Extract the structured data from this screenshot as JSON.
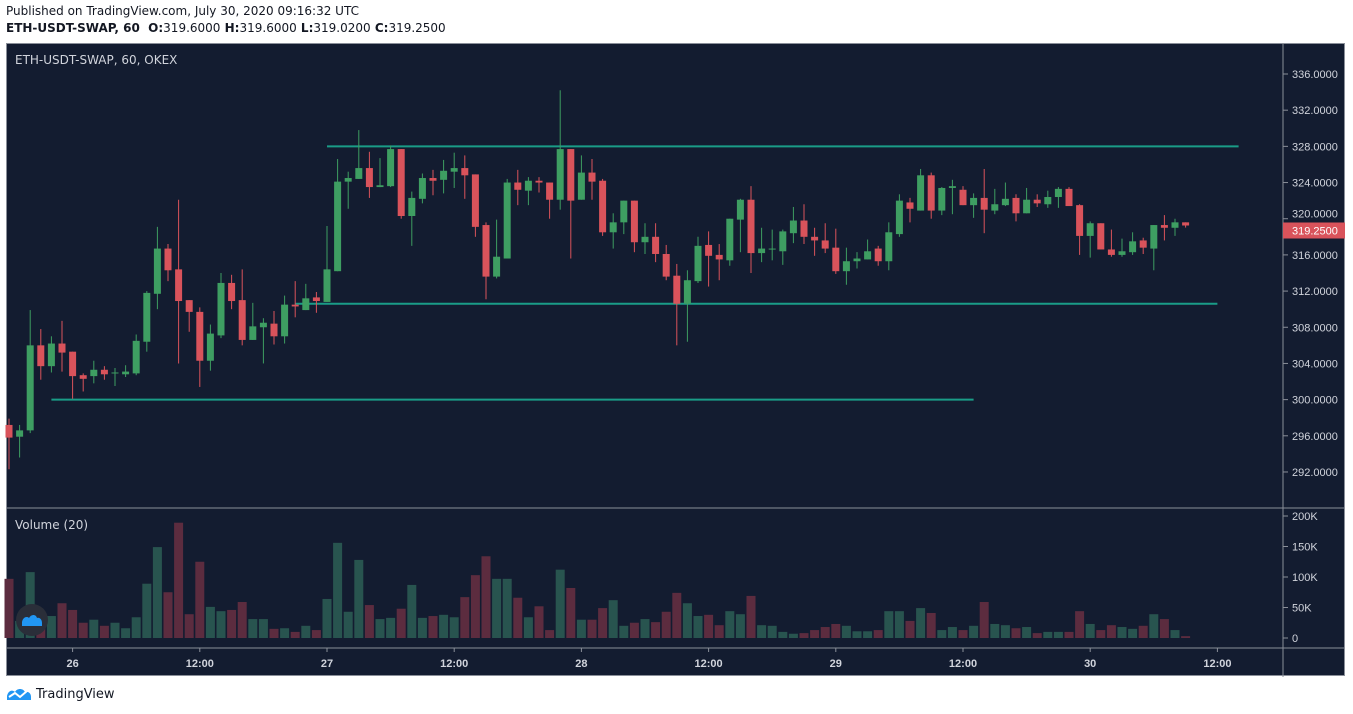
{
  "header": {
    "published": "Published on TradingView.com, July 30, 2020 09:16:32 UTC",
    "symbol": "ETH-USDT-SWAP, 60",
    "o_label": "O:",
    "o": "319.6000",
    "h_label": "H:",
    "h": "319.6000",
    "l_label": "L:",
    "l": "319.0200",
    "c_label": "C:",
    "c": "319.2500"
  },
  "pane": {
    "title": "ETH-USDT-SWAP, 60, OKEX",
    "volume_title": "Volume (20)"
  },
  "footer": {
    "brand": "TradingView"
  },
  "colors": {
    "background": "#131c30",
    "up": "#3e9e62",
    "down": "#d9535b",
    "vol_up": "#28544f",
    "vol_down": "#5c2c3f",
    "lines": "#1a9c87",
    "last_price": "#d9535b"
  },
  "chart_data": {
    "type": "candlestick",
    "interval": "60",
    "first_bar_time": "2020-07-25 18:00",
    "ohlc": [
      [
        297.2,
        297.9,
        292.3,
        295.8
      ],
      [
        295.9,
        297.2,
        293.6,
        296.6
      ],
      [
        296.6,
        309.9,
        296.3,
        306.0
      ],
      [
        306.0,
        307.8,
        302.2,
        303.7
      ],
      [
        303.7,
        307.0,
        303.0,
        306.2
      ],
      [
        306.2,
        308.7,
        303.1,
        305.2
      ],
      [
        305.3,
        305.3,
        300.1,
        302.6
      ],
      [
        302.7,
        302.9,
        300.9,
        302.3
      ],
      [
        302.6,
        304.3,
        301.8,
        303.3
      ],
      [
        303.3,
        303.7,
        302.2,
        302.8
      ],
      [
        302.9,
        303.5,
        301.5,
        303.0
      ],
      [
        302.8,
        303.8,
        302.5,
        303.1
      ],
      [
        302.9,
        307.2,
        302.7,
        306.5
      ],
      [
        306.4,
        312.0,
        305.3,
        311.8
      ],
      [
        311.7,
        319.1,
        310.0,
        316.7
      ],
      [
        316.7,
        317.2,
        313.1,
        314.3
      ],
      [
        314.4,
        322.1,
        304.0,
        310.9
      ],
      [
        311.0,
        311.0,
        307.5,
        309.7
      ],
      [
        309.7,
        310.2,
        301.4,
        304.3
      ],
      [
        304.3,
        308.3,
        303.2,
        307.3
      ],
      [
        307.1,
        314.0,
        306.8,
        312.9
      ],
      [
        312.9,
        313.8,
        310.0,
        310.9
      ],
      [
        311.0,
        314.4,
        306.0,
        306.6
      ],
      [
        306.6,
        310.7,
        306.6,
        308.1
      ],
      [
        308.0,
        309.0,
        304.0,
        308.5
      ],
      [
        308.4,
        309.8,
        306.1,
        307.0
      ],
      [
        307.0,
        311.5,
        306.2,
        310.5
      ],
      [
        310.5,
        313.1,
        309.1,
        310.3
      ],
      [
        309.9,
        312.8,
        309.9,
        311.2
      ],
      [
        311.3,
        311.9,
        309.6,
        310.9
      ],
      [
        310.8,
        319.2,
        310.8,
        314.4
      ],
      [
        314.2,
        326.6,
        314.2,
        324.1
      ],
      [
        324.1,
        325.2,
        321.1,
        324.5
      ],
      [
        324.4,
        329.8,
        324.4,
        325.6
      ],
      [
        325.6,
        327.4,
        322.3,
        323.5
      ],
      [
        323.5,
        326.7,
        323.5,
        323.7
      ],
      [
        323.6,
        328.1,
        323.5,
        327.7
      ],
      [
        327.7,
        327.7,
        320.0,
        320.3
      ],
      [
        320.3,
        323.0,
        317.0,
        322.3
      ],
      [
        322.2,
        325.0,
        321.7,
        324.5
      ],
      [
        324.5,
        325.4,
        322.6,
        324.2
      ],
      [
        324.3,
        326.5,
        322.8,
        325.3
      ],
      [
        325.2,
        327.3,
        323.4,
        325.6
      ],
      [
        325.6,
        327.0,
        322.2,
        324.8
      ],
      [
        324.9,
        324.9,
        318.0,
        319.1
      ],
      [
        319.3,
        319.6,
        311.1,
        313.6
      ],
      [
        313.6,
        319.9,
        313.4,
        315.8
      ],
      [
        315.6,
        324.4,
        315.6,
        324.0
      ],
      [
        324.0,
        325.4,
        321.5,
        323.2
      ],
      [
        323.1,
        324.6,
        321.5,
        324.2
      ],
      [
        324.2,
        324.6,
        322.9,
        324.0
      ],
      [
        324.0,
        324.0,
        320.0,
        322.1
      ],
      [
        322.1,
        334.2,
        321.0,
        327.7
      ],
      [
        327.7,
        327.7,
        315.6,
        322.0
      ],
      [
        322.1,
        327.0,
        322.1,
        325.1
      ],
      [
        325.1,
        326.6,
        322.1,
        324.1
      ],
      [
        324.2,
        324.4,
        318.1,
        318.5
      ],
      [
        318.5,
        320.6,
        316.7,
        319.6
      ],
      [
        319.6,
        322.0,
        318.3,
        322.0
      ],
      [
        322.0,
        322.0,
        316.3,
        317.4
      ],
      [
        317.4,
        319.5,
        316.1,
        318.0
      ],
      [
        318.0,
        319.5,
        315.2,
        316.1
      ],
      [
        316.1,
        317.1,
        313.2,
        313.6
      ],
      [
        313.7,
        315.0,
        306.0,
        310.6
      ],
      [
        310.6,
        314.3,
        306.4,
        313.2
      ],
      [
        313.1,
        318.0,
        312.9,
        317.0
      ],
      [
        317.1,
        318.6,
        312.5,
        315.9
      ],
      [
        316.0,
        317.2,
        313.2,
        315.5
      ],
      [
        315.4,
        320.0,
        314.8,
        320.0
      ],
      [
        319.9,
        322.2,
        316.3,
        322.1
      ],
      [
        322.1,
        323.6,
        314.0,
        316.2
      ],
      [
        316.2,
        319.0,
        315.2,
        316.7
      ],
      [
        316.6,
        318.8,
        315.4,
        316.7
      ],
      [
        316.4,
        318.8,
        314.9,
        318.6
      ],
      [
        318.4,
        321.3,
        317.3,
        319.8
      ],
      [
        319.8,
        321.6,
        317.2,
        318.0
      ],
      [
        318.0,
        319.0,
        315.9,
        317.6
      ],
      [
        317.6,
        319.5,
        316.2,
        316.7
      ],
      [
        316.8,
        318.9,
        313.9,
        314.2
      ],
      [
        314.2,
        316.8,
        312.7,
        315.3
      ],
      [
        315.3,
        316.3,
        314.5,
        315.6
      ],
      [
        315.5,
        317.7,
        315.5,
        316.4
      ],
      [
        316.7,
        317.0,
        314.8,
        315.3
      ],
      [
        315.3,
        319.6,
        314.3,
        318.5
      ],
      [
        318.3,
        322.7,
        318.0,
        322.0
      ],
      [
        321.8,
        322.3,
        319.6,
        321.1
      ],
      [
        320.9,
        325.5,
        320.9,
        324.8
      ],
      [
        324.8,
        325.1,
        320.0,
        320.9
      ],
      [
        320.9,
        323.5,
        320.4,
        323.4
      ],
      [
        323.4,
        324.3,
        320.5,
        323.6
      ],
      [
        323.2,
        323.6,
        321.5,
        321.5
      ],
      [
        321.5,
        322.8,
        320.1,
        322.3
      ],
      [
        322.3,
        325.5,
        318.4,
        321.0
      ],
      [
        320.9,
        323.3,
        320.5,
        321.6
      ],
      [
        321.5,
        324.0,
        321.4,
        322.2
      ],
      [
        322.3,
        322.7,
        319.7,
        320.6
      ],
      [
        320.6,
        323.4,
        320.6,
        322.1
      ],
      [
        322.1,
        322.7,
        321.3,
        321.7
      ],
      [
        321.6,
        323.1,
        321.2,
        322.4
      ],
      [
        322.4,
        323.5,
        321.2,
        323.3
      ],
      [
        323.3,
        323.5,
        321.4,
        321.4
      ],
      [
        321.5,
        321.6,
        316.0,
        318.1
      ],
      [
        318.1,
        319.7,
        315.7,
        319.5
      ],
      [
        319.5,
        319.5,
        316.6,
        316.6
      ],
      [
        316.6,
        318.8,
        315.8,
        316.0
      ],
      [
        316.0,
        317.8,
        315.8,
        316.4
      ],
      [
        316.3,
        318.5,
        316.0,
        317.5
      ],
      [
        317.6,
        317.9,
        316.1,
        316.8
      ],
      [
        316.7,
        319.3,
        314.3,
        319.3
      ],
      [
        319.3,
        320.4,
        317.6,
        319.0
      ],
      [
        319.0,
        320.0,
        318.1,
        319.6
      ],
      [
        319.6,
        319.6,
        319.02,
        319.25
      ]
    ],
    "volume_k": [
      97,
      28,
      108,
      25,
      36,
      57,
      46,
      25,
      30,
      20,
      25,
      16,
      34,
      89,
      149,
      75,
      189,
      39,
      125,
      51,
      44,
      46,
      59,
      31,
      31,
      15,
      16,
      10,
      20,
      13,
      64,
      156,
      43,
      128,
      54,
      31,
      33,
      48,
      87,
      33,
      36,
      38,
      34,
      67,
      103,
      134,
      97,
      97,
      66,
      34,
      52,
      13,
      112,
      82,
      30,
      30,
      49,
      62,
      20,
      25,
      31,
      26,
      43,
      74,
      57,
      36,
      38,
      21,
      44,
      39,
      69,
      21,
      20,
      10,
      7,
      8,
      13,
      18,
      23,
      20,
      11,
      11,
      13,
      44,
      44,
      28,
      49,
      41,
      13,
      18,
      13,
      20,
      59,
      23,
      21,
      16,
      18,
      8,
      10,
      10,
      10,
      44,
      23,
      13,
      21,
      18,
      15,
      20,
      39,
      31,
      13,
      3
    ],
    "price_axis": {
      "ylim": [
        290,
        338
      ],
      "ticks": [
        "336.0000",
        "332.0000",
        "328.0000",
        "324.0000",
        "320.0000",
        "316.0000",
        "312.0000",
        "308.0000",
        "304.0000",
        "300.0000",
        "296.0000",
        "292.0000"
      ]
    },
    "last_price_label": "319.2500",
    "volume_axis": {
      "ticks": [
        {
          "value": 200,
          "label": "200K"
        },
        {
          "value": 150,
          "label": "150K"
        },
        {
          "value": 100,
          "label": "100K"
        },
        {
          "value": 50,
          "label": "50K"
        },
        {
          "value": 0,
          "label": "0"
        }
      ]
    },
    "time_axis": [
      {
        "label": "26",
        "time": "2020-07-26 00:00"
      },
      {
        "label": "12:00",
        "time": "2020-07-26 12:00"
      },
      {
        "label": "27",
        "time": "2020-07-27 00:00"
      },
      {
        "label": "12:00",
        "time": "2020-07-27 12:00"
      },
      {
        "label": "28",
        "time": "2020-07-28 00:00"
      },
      {
        "label": "12:00",
        "time": "2020-07-28 12:00"
      },
      {
        "label": "29",
        "time": "2020-07-29 00:00"
      },
      {
        "label": "12:00",
        "time": "2020-07-29 12:00"
      },
      {
        "label": "30",
        "time": "2020-07-30 00:00"
      },
      {
        "label": "12:00",
        "time": "2020-07-30 12:00"
      }
    ],
    "horizontal_lines": [
      {
        "price": 328.0,
        "from": "2020-07-27 00:00",
        "to": "2020-07-30 14:00"
      },
      {
        "price": 310.6,
        "from": "2020-07-26 21:00",
        "to": "2020-07-30 12:00"
      },
      {
        "price": 300.0,
        "from": "2020-07-25 22:00",
        "to": "2020-07-29 13:00"
      }
    ]
  }
}
